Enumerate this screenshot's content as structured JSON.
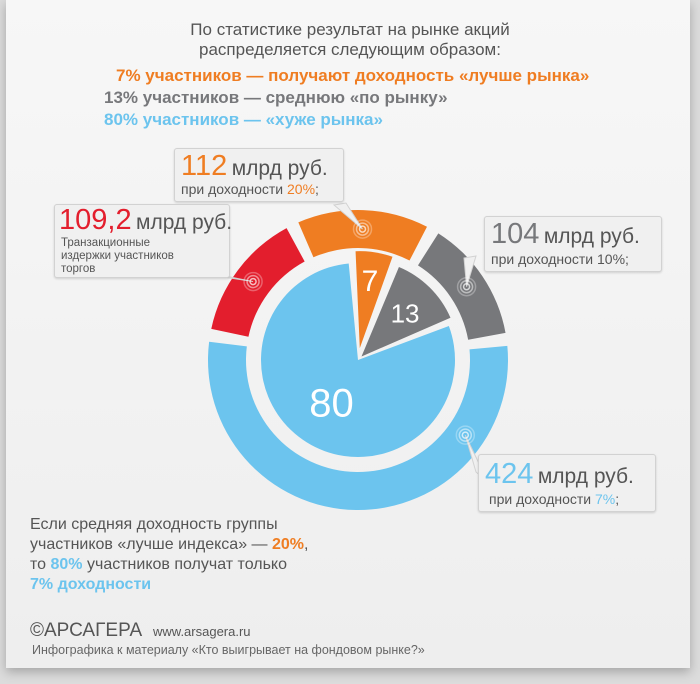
{
  "intro": {
    "line1": "По статистике результат на рынке акций",
    "line2": "распределяется следующим образом:"
  },
  "stats": [
    {
      "text": "7% участников — получают доходность «лучше рынка»",
      "color": "#ef7d22"
    },
    {
      "text": "13% участников — среднюю «по рынку»",
      "color": "#77787b"
    },
    {
      "text": "80% участников — «хуже рынка»",
      "color": "#6cc4ee"
    }
  ],
  "chart_data": [
    {
      "type": "pie",
      "values": [
        7,
        13,
        80
      ],
      "labels": [
        "7",
        "13",
        "80"
      ],
      "colors": [
        "#ef7d22",
        "#77787b",
        "#6cc4ee"
      ]
    },
    {
      "type": "donut",
      "values": [
        109.2,
        112,
        104,
        424
      ],
      "colors": [
        "#e31e2d",
        "#ef7d22",
        "#77787b",
        "#6cc4ee"
      ]
    }
  ],
  "callouts": {
    "red": {
      "value": "109,2",
      "unit": "млрд руб.",
      "desc1": "Транзакционные",
      "desc2": "издержки участников",
      "desc3": "торгов"
    },
    "orange": {
      "value": "112",
      "unit": "млрд руб.",
      "pre": "при доходности ",
      "pct": "20%",
      "post": ";"
    },
    "gray": {
      "value": "104",
      "unit": "млрд руб.",
      "pre": "при доходности ",
      "pct": "10%",
      "post": ";"
    },
    "blue": {
      "value": "424",
      "unit": "млрд руб.",
      "pre": "при доходности ",
      "pct": "7%",
      "post": ";"
    }
  },
  "note": {
    "l1": "Если средняя доходность группы",
    "l2a": "участников «лучше индекса» — ",
    "l2b": "20%",
    "l2c": ",",
    "l3a": "то ",
    "l3b": "80%",
    "l3c": " участников получат только",
    "l4": "7% доходности"
  },
  "footer": {
    "brand": "©АРСАГЕРА",
    "url": "www.arsagera.ru",
    "caption": "Инфографика к материалу «Кто выигрывает на фондовом рынке?»"
  }
}
